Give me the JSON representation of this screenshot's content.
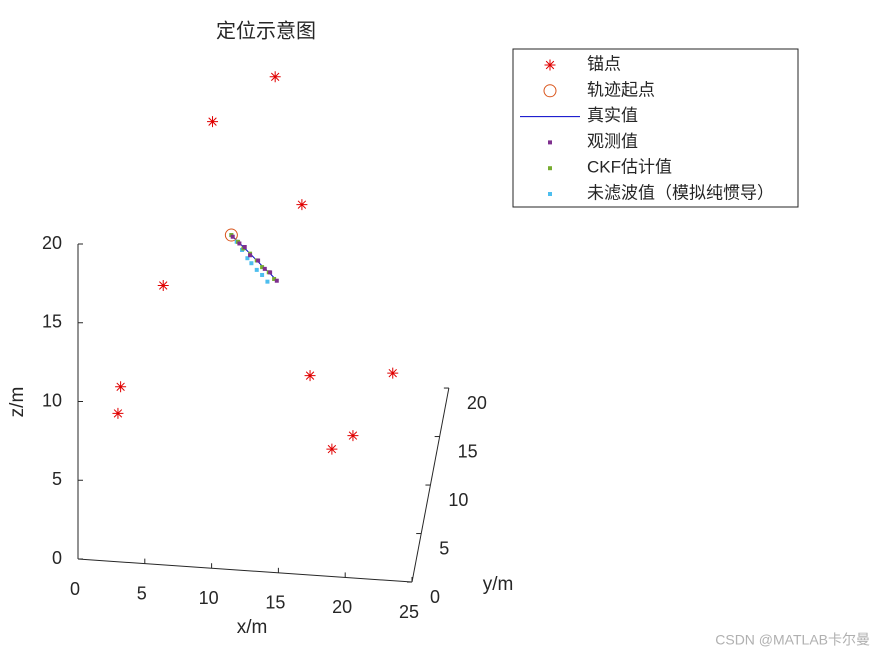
{
  "chart_data": {
    "type": "scatter3d",
    "title": "定位示意图",
    "xlabel": "x/m",
    "ylabel": "y/m",
    "zlabel": "z/m",
    "xlim": [
      0,
      25
    ],
    "ylim": [
      0,
      20
    ],
    "zlim": [
      0,
      20
    ],
    "xticks": [
      0,
      5,
      10,
      15,
      20,
      25
    ],
    "yticks": [
      0,
      5,
      10,
      15,
      20
    ],
    "zticks": [
      0,
      5,
      10,
      15,
      20
    ],
    "legend": "northeast",
    "series": [
      {
        "name": "锚点",
        "color": "#e00000",
        "marker": "asterisk",
        "x": [
          12,
          8,
          14,
          5,
          2.5,
          2.3,
          15.3,
          20.8,
          19.2,
          17.9
        ],
        "y": [
          20,
          15,
          20,
          10,
          5,
          5,
          15,
          20,
          10,
          8
        ],
        "z": [
          19,
          19,
          11,
          11.5,
          8,
          6.3,
          3.3,
          0.7,
          2.8,
          3.1
        ]
      },
      {
        "name": "轨迹起点",
        "color": "#d95319",
        "marker": "circle",
        "x": [
          10.1
        ],
        "y": [
          10
        ],
        "z": [
          15
        ]
      },
      {
        "name": "真实值",
        "color": "#0000c8",
        "marker": "line",
        "x": [
          10.1,
          10.6,
          11.0,
          11.5,
          12.0,
          12.5,
          12.9,
          13.4
        ],
        "y": [
          10,
          10,
          10,
          10,
          10,
          10,
          10,
          10
        ],
        "z": [
          15,
          14.6,
          14.3,
          13.9,
          13.5,
          13.1,
          12.8,
          12.4
        ]
      },
      {
        "name": "观测值",
        "color": "#7e2f8e",
        "marker": "square",
        "x": [
          10.2,
          10.7,
          11.1,
          11.5,
          12.1,
          12.6,
          13.0,
          13.5
        ],
        "y": [
          10,
          10,
          10,
          10,
          10,
          10,
          10,
          10
        ],
        "z": [
          14.9,
          14.5,
          14.3,
          13.8,
          13.5,
          13.0,
          12.8,
          12.3
        ]
      },
      {
        "name": "CKF估计值",
        "color": "#77ac30",
        "marker": "square",
        "x": [
          10.1,
          10.6,
          11.0,
          11.5,
          12.0,
          12.4,
          12.9,
          13.3
        ],
        "y": [
          10,
          10,
          10,
          10,
          10,
          10,
          10,
          10
        ],
        "z": [
          15,
          14.6,
          14.2,
          13.9,
          13.5,
          13.1,
          12.8,
          12.4
        ]
      },
      {
        "name": "未滤波值（模拟纯惯导）",
        "color": "#4dbeee",
        "marker": "square",
        "x": [
          10.1,
          10.5,
          10.9,
          11.3,
          11.6,
          12.0,
          12.4,
          12.8
        ],
        "y": [
          10,
          10,
          10,
          10,
          10,
          10,
          10,
          10
        ],
        "z": [
          15,
          14.6,
          14.1,
          13.6,
          13.3,
          12.9,
          12.6,
          12.2
        ]
      }
    ],
    "watermark": "CSDN @MATLAB卡尔曼"
  }
}
